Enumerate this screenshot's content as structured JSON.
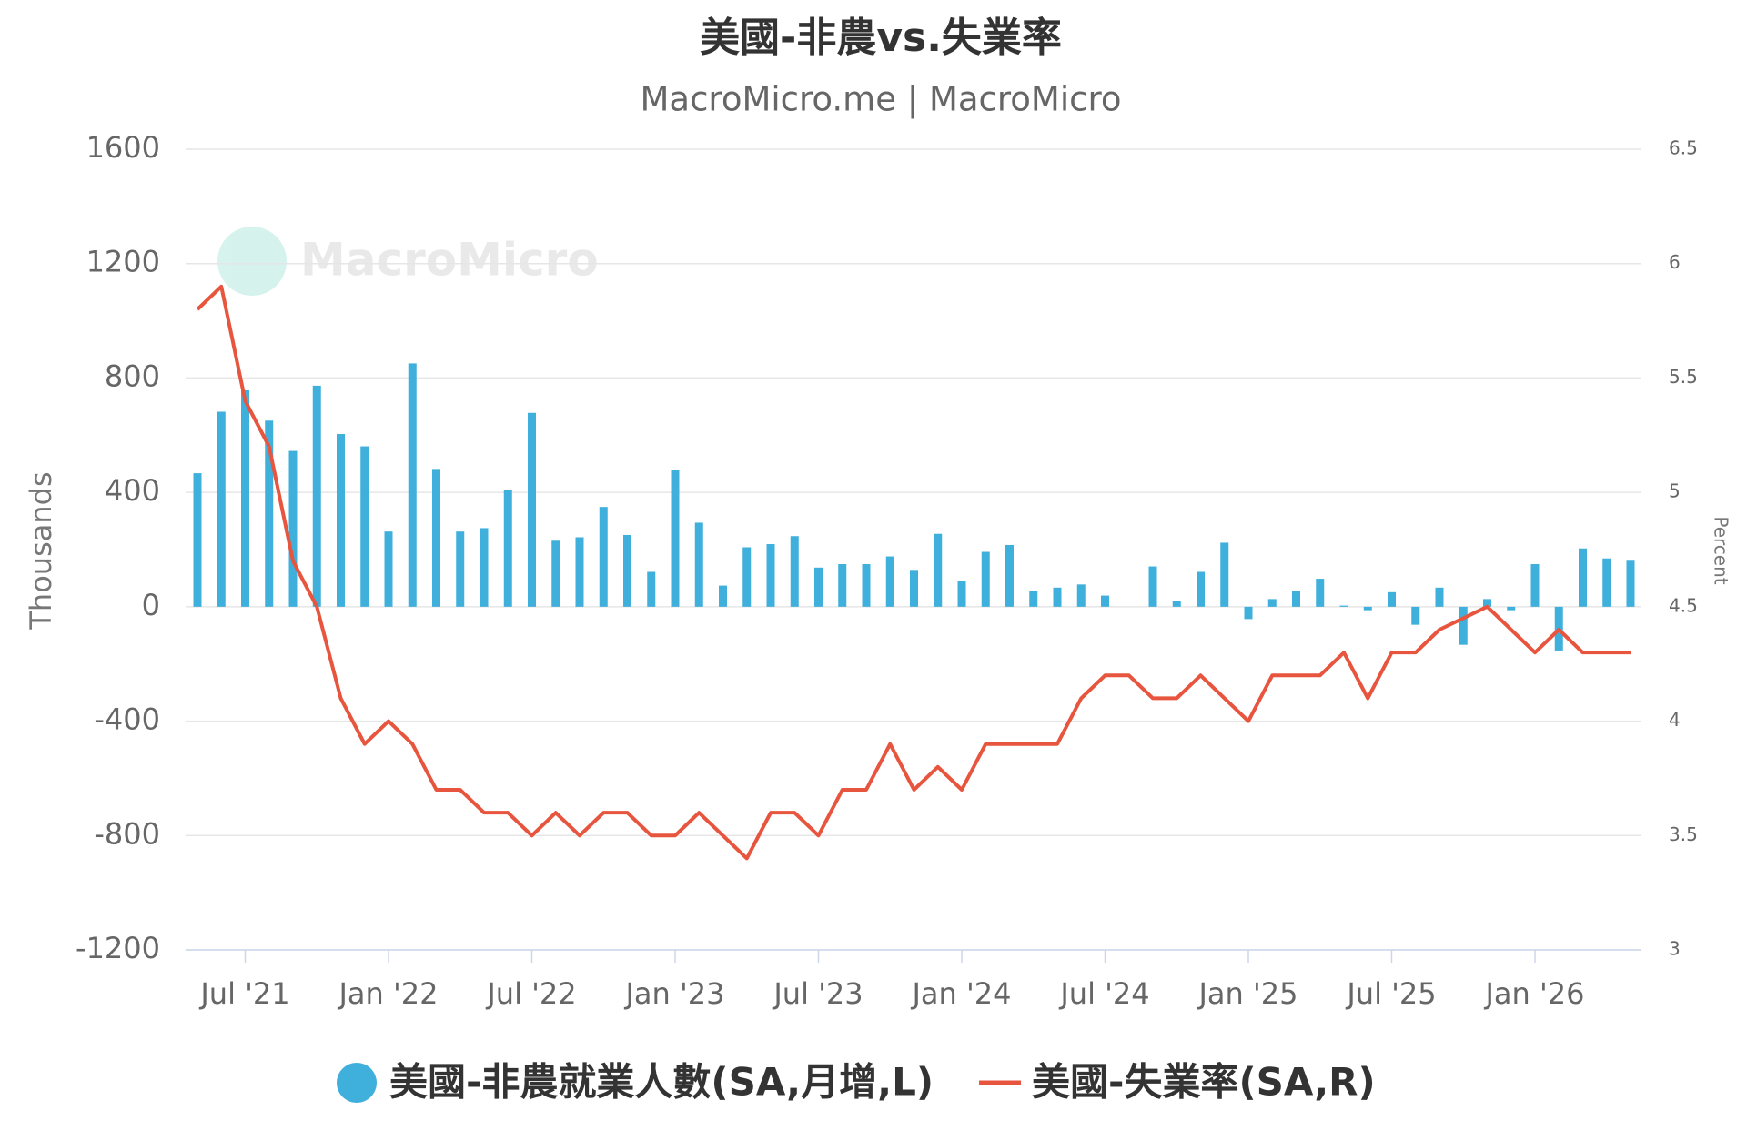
{
  "chart_data": {
    "type": "bar-line",
    "title": "美國-非農vs.失業率",
    "subtitle": "MacroMicro.me | MacroMicro",
    "watermark": "MacroMicro",
    "ylabel": "Thousands",
    "y2label": "Percent",
    "x": [
      "2021-05",
      "2021-06",
      "2021-07",
      "2021-08",
      "2021-09",
      "2021-10",
      "2021-11",
      "2021-12",
      "2022-01",
      "2022-02",
      "2022-03",
      "2022-04",
      "2022-05",
      "2022-06",
      "2022-07",
      "2022-08",
      "2022-09",
      "2022-10",
      "2022-11",
      "2022-12",
      "2023-01",
      "2023-02",
      "2023-03",
      "2023-04",
      "2023-05",
      "2023-06",
      "2023-07",
      "2023-08",
      "2023-09",
      "2023-10",
      "2023-11",
      "2023-12",
      "2024-01",
      "2024-02",
      "2024-03",
      "2024-04",
      "2024-05",
      "2024-06",
      "2024-07",
      "2024-08",
      "2024-09",
      "2024-10",
      "2024-11",
      "2024-12",
      "2025-01",
      "2025-02",
      "2025-03",
      "2025-04",
      "2025-05",
      "2025-06",
      "2025-07",
      "2025-08",
      "2025-09",
      "2025-10",
      "2025-11",
      "2025-12",
      "2026-01",
      "2026-02",
      "2026-03",
      "2026-04",
      "2026-05"
    ],
    "xticks": [
      {
        "value": "2021-07",
        "label": "Jul '21"
      },
      {
        "value": "2022-01",
        "label": "Jan '22"
      },
      {
        "value": "2022-07",
        "label": "Jul '22"
      },
      {
        "value": "2023-01",
        "label": "Jan '23"
      },
      {
        "value": "2023-07",
        "label": "Jul '23"
      },
      {
        "value": "2024-01",
        "label": "Jan '24"
      },
      {
        "value": "2024-07",
        "label": "Jul '24"
      },
      {
        "value": "2025-01",
        "label": "Jan '25"
      },
      {
        "value": "2025-07",
        "label": "Jul '25"
      },
      {
        "value": "2026-01",
        "label": "Jan '26"
      }
    ],
    "ylim": [
      -1200,
      1600
    ],
    "yticks": [
      -1200,
      -800,
      -400,
      0,
      400,
      800,
      1200,
      1600
    ],
    "y2lim": [
      3,
      6.5
    ],
    "y2ticks": [
      3,
      3.5,
      4,
      4.5,
      5,
      5.5,
      6,
      6.5
    ],
    "grid": true,
    "legend": "bottom",
    "series": [
      {
        "name": "美國-非農就業人數(SA,月增,L)",
        "kind": "bar",
        "color": "#3fafdc",
        "values": [
          467,
          682,
          757,
          651,
          545,
          773,
          604,
          561,
          263,
          851,
          482,
          263,
          275,
          408,
          678,
          231,
          243,
          349,
          251,
          122,
          478,
          294,
          74,
          208,
          219,
          247,
          137,
          149,
          149,
          176,
          129,
          255,
          90,
          192,
          216,
          55,
          67,
          78,
          39,
          null,
          141,
          20,
          122,
          224,
          -43,
          27,
          55,
          98,
          4,
          -12,
          51,
          -63,
          67,
          -133,
          27,
          -12,
          149,
          -153,
          204,
          169,
          161
        ]
      },
      {
        "name": "美國-失業率(SA,R)",
        "kind": "line",
        "axis": "y2",
        "color": "#e8553e",
        "values": [
          5.8,
          5.9,
          5.4,
          5.2,
          4.7,
          4.5,
          4.1,
          3.9,
          4.0,
          3.9,
          3.7,
          3.7,
          3.6,
          3.6,
          3.5,
          3.6,
          3.5,
          3.6,
          3.6,
          3.5,
          3.5,
          3.6,
          3.5,
          3.4,
          3.6,
          3.6,
          3.5,
          3.7,
          3.7,
          3.9,
          3.7,
          3.8,
          3.7,
          3.9,
          3.9,
          3.9,
          3.9,
          4.1,
          4.2,
          4.2,
          4.1,
          4.1,
          4.2,
          4.1,
          4.0,
          4.2,
          4.2,
          4.2,
          4.3,
          4.1,
          4.3,
          4.3,
          4.4,
          4.45,
          4.5,
          4.4,
          4.3,
          4.4,
          4.3,
          4.3,
          4.3
        ]
      }
    ]
  }
}
